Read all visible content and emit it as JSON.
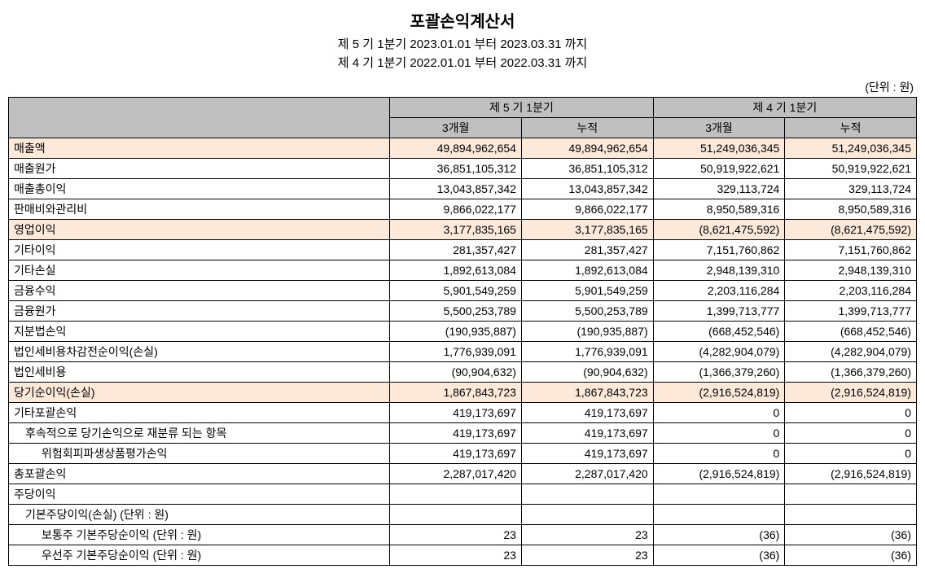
{
  "header": {
    "title": "포괄손익계산서",
    "period1": "제 5 기 1분기 2023.01.01 부터 2023.03.31 까지",
    "period2": "제 4 기 1분기 2022.01.01 부터 2022.03.31 까지",
    "unit": "(단위 : 원)"
  },
  "columns": {
    "group1": "제 5 기 1분기",
    "group2": "제 4 기 1분기",
    "sub1": "3개월",
    "sub2": "누적",
    "sub3": "3개월",
    "sub4": "누적"
  },
  "rows": [
    {
      "label": "매출액",
      "indent": 0,
      "hl": true,
      "v": [
        "49,894,962,654",
        "49,894,962,654",
        "51,249,036,345",
        "51,249,036,345"
      ]
    },
    {
      "label": "매출원가",
      "indent": 0,
      "hl": false,
      "v": [
        "36,851,105,312",
        "36,851,105,312",
        "50,919,922,621",
        "50,919,922,621"
      ]
    },
    {
      "label": "매출총이익",
      "indent": 0,
      "hl": false,
      "v": [
        "13,043,857,342",
        "13,043,857,342",
        "329,113,724",
        "329,113,724"
      ]
    },
    {
      "label": "판매비와관리비",
      "indent": 0,
      "hl": false,
      "v": [
        "9,866,022,177",
        "9,866,022,177",
        "8,950,589,316",
        "8,950,589,316"
      ]
    },
    {
      "label": "영업이익",
      "indent": 0,
      "hl": true,
      "v": [
        "3,177,835,165",
        "3,177,835,165",
        "(8,621,475,592)",
        "(8,621,475,592)"
      ]
    },
    {
      "label": "기타이익",
      "indent": 0,
      "hl": false,
      "v": [
        "281,357,427",
        "281,357,427",
        "7,151,760,862",
        "7,151,760,862"
      ]
    },
    {
      "label": "기타손실",
      "indent": 0,
      "hl": false,
      "v": [
        "1,892,613,084",
        "1,892,613,084",
        "2,948,139,310",
        "2,948,139,310"
      ]
    },
    {
      "label": "금융수익",
      "indent": 0,
      "hl": false,
      "v": [
        "5,901,549,259",
        "5,901,549,259",
        "2,203,116,284",
        "2,203,116,284"
      ]
    },
    {
      "label": "금융원가",
      "indent": 0,
      "hl": false,
      "v": [
        "5,500,253,789",
        "5,500,253,789",
        "1,399,713,777",
        "1,399,713,777"
      ]
    },
    {
      "label": "지분법손익",
      "indent": 0,
      "hl": false,
      "v": [
        "(190,935,887)",
        "(190,935,887)",
        "(668,452,546)",
        "(668,452,546)"
      ]
    },
    {
      "label": "법인세비용차감전순이익(손실)",
      "indent": 0,
      "hl": false,
      "v": [
        "1,776,939,091",
        "1,776,939,091",
        "(4,282,904,079)",
        "(4,282,904,079)"
      ]
    },
    {
      "label": "법인세비용",
      "indent": 0,
      "hl": false,
      "v": [
        "(90,904,632)",
        "(90,904,632)",
        "(1,366,379,260)",
        "(1,366,379,260)"
      ]
    },
    {
      "label": "당기순이익(손실)",
      "indent": 0,
      "hl": true,
      "v": [
        "1,867,843,723",
        "1,867,843,723",
        "(2,916,524,819)",
        "(2,916,524,819)"
      ]
    },
    {
      "label": "기타포괄손익",
      "indent": 0,
      "hl": false,
      "v": [
        "419,173,697",
        "419,173,697",
        "0",
        "0"
      ]
    },
    {
      "label": "후속적으로 당기손익으로 재분류 되는 항목",
      "indent": 1,
      "hl": false,
      "v": [
        "419,173,697",
        "419,173,697",
        "0",
        "0"
      ]
    },
    {
      "label": "위험회피파생상품평가손익",
      "indent": 2,
      "hl": false,
      "v": [
        "419,173,697",
        "419,173,697",
        "0",
        "0"
      ]
    },
    {
      "label": "총포괄손익",
      "indent": 0,
      "hl": false,
      "v": [
        "2,287,017,420",
        "2,287,017,420",
        "(2,916,524,819)",
        "(2,916,524,819)"
      ]
    },
    {
      "label": "주당이익",
      "indent": 0,
      "hl": false,
      "v": [
        "",
        "",
        "",
        ""
      ]
    },
    {
      "label": "기본주당이익(손실) (단위 : 원)",
      "indent": 1,
      "hl": false,
      "v": [
        "",
        "",
        "",
        ""
      ]
    },
    {
      "label": "보통주 기본주당순이익 (단위 : 원)",
      "indent": 2,
      "hl": false,
      "v": [
        "23",
        "23",
        "(36)",
        "(36)"
      ]
    },
    {
      "label": "우선주 기본주당순이익 (단위 : 원)",
      "indent": 2,
      "hl": false,
      "v": [
        "23",
        "23",
        "(36)",
        "(36)"
      ]
    }
  ],
  "style": {
    "header_bg": "#c0c0c0",
    "highlight_bg": "#fde9d9",
    "border_color": "#000000",
    "font_size_body": 14,
    "font_size_title": 20
  }
}
